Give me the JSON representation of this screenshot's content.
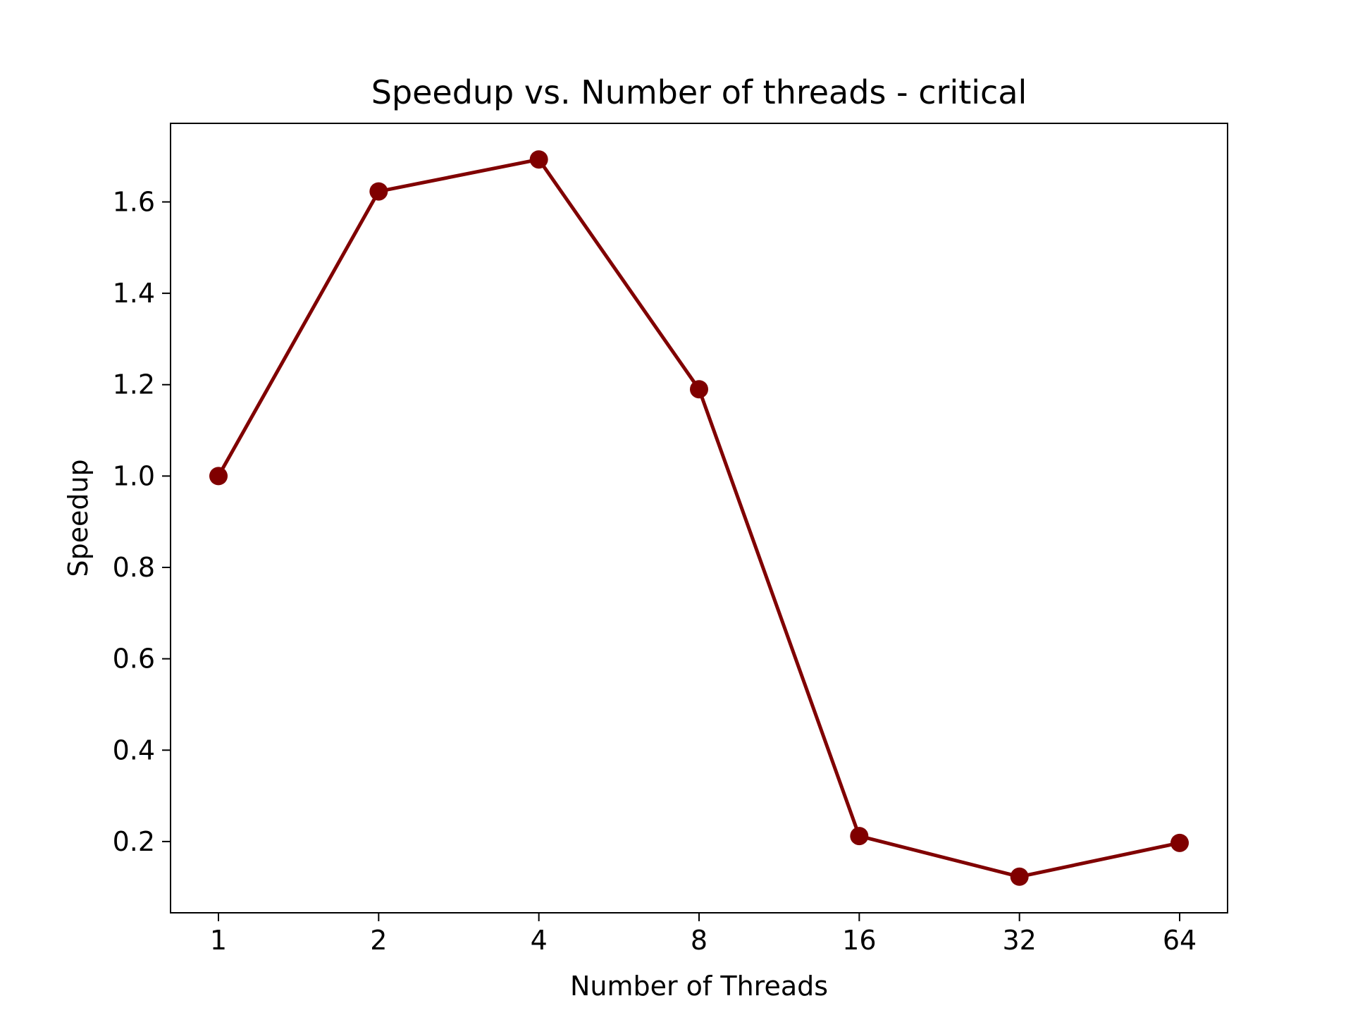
{
  "chart_data": {
    "type": "line",
    "title": "Speedup vs. Number of threads - critical",
    "xlabel": "Number of Threads",
    "ylabel": "Speedup",
    "x_scale": "log2",
    "categories": [
      "1",
      "2",
      "4",
      "8",
      "16",
      "32",
      "64"
    ],
    "x": [
      1,
      2,
      4,
      8,
      16,
      32,
      64
    ],
    "series": [
      {
        "values": [
          1.0,
          1.623,
          1.693,
          1.19,
          0.212,
          0.123,
          0.197
        ],
        "color": "#800000",
        "marker": "circle"
      }
    ],
    "ylim": [
      0.044,
      1.772
    ],
    "yticks": [
      "0.2",
      "0.4",
      "0.6",
      "0.8",
      "1.0",
      "1.2",
      "1.4",
      "1.6"
    ],
    "grid": false,
    "legend": "none"
  }
}
